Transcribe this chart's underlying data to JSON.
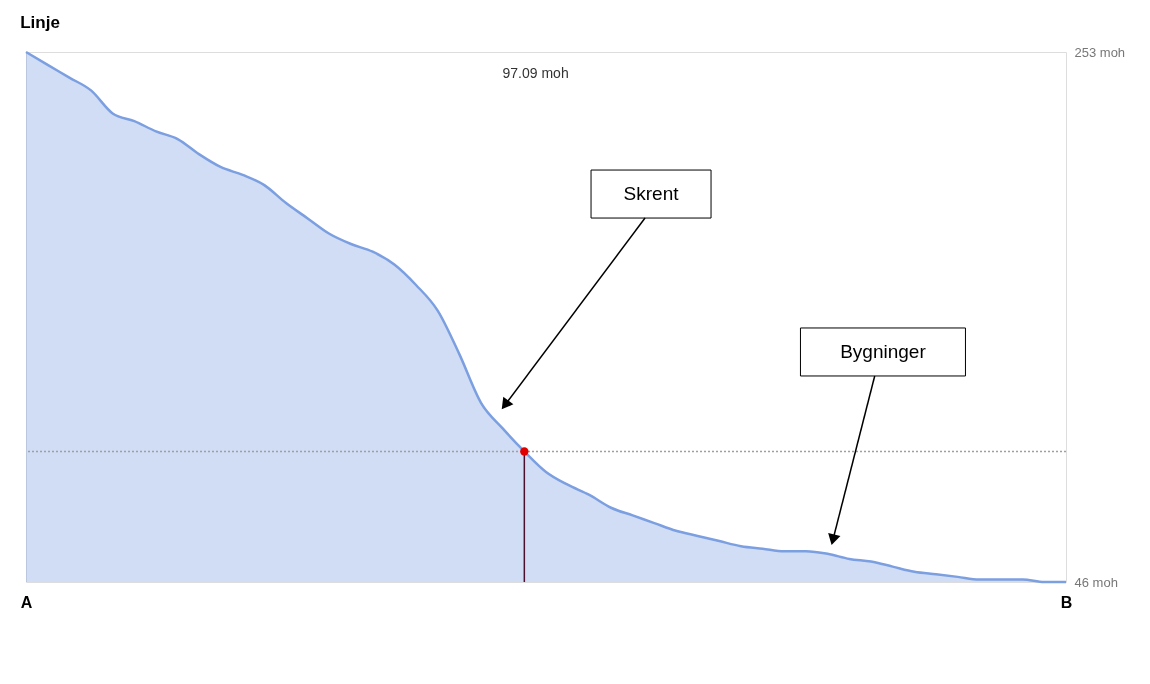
{
  "chart_data": {
    "type": "area",
    "title": "Linje",
    "categories": [
      "A",
      null,
      null,
      null,
      null,
      null,
      null,
      null,
      null,
      null,
      null,
      null,
      null,
      null,
      null,
      null,
      null,
      null,
      null,
      null,
      null,
      null,
      null,
      null,
      null,
      null,
      null,
      null,
      null,
      null,
      null,
      null,
      null,
      null,
      null,
      null,
      null,
      null,
      null,
      null,
      null,
      null,
      null,
      null,
      null,
      null,
      null,
      null,
      "B"
    ],
    "ylim": [
      46,
      253
    ],
    "yticks": [
      {
        "value": 253,
        "label": "253 moh"
      },
      {
        "value": 46,
        "label": "46 moh"
      }
    ],
    "grid": false,
    "series": [
      {
        "color": "#7b9fe0",
        "values": [
          253,
          248,
          243,
          238,
          229,
          226,
          222,
          219,
          213,
          208,
          205,
          201,
          194,
          188,
          182,
          178,
          175,
          170,
          162,
          152,
          135,
          116,
          106,
          97,
          89,
          84,
          80,
          75,
          72,
          69,
          66,
          64,
          62,
          60,
          59,
          58,
          58,
          57,
          55,
          54,
          52,
          50,
          49,
          48,
          47,
          47,
          47,
          46,
          46
        ]
      },
      {
        "type": "lollipop",
        "color": "#e00000",
        "values": [
          null,
          null,
          null,
          null,
          null,
          null,
          null,
          null,
          null,
          null,
          null,
          null,
          null,
          null,
          null,
          null,
          null,
          null,
          null,
          null,
          null,
          null,
          null,
          97,
          null,
          null,
          null,
          null,
          null,
          null,
          null,
          null,
          null,
          null,
          null,
          null,
          null,
          null,
          null,
          null,
          null,
          null,
          null,
          null,
          null,
          null,
          null,
          null,
          null
        ]
      }
    ],
    "ref_lines": [
      {
        "axis": "y",
        "value": 97,
        "color": "#a0a0a0",
        "line_style": "dotted"
      }
    ],
    "annotations": [
      "97.09 moh",
      "Skrent",
      "Bygninger"
    ]
  }
}
